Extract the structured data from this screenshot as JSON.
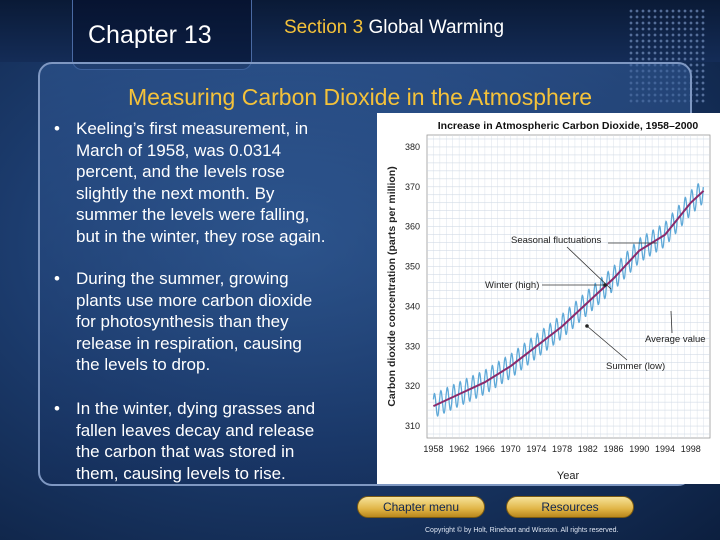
{
  "header": {
    "chapter": "Chapter 13",
    "section_number": "Section 3",
    "section_name": "Global Warming"
  },
  "slide": {
    "title": "Measuring Carbon Dioxide in the Atmosphere",
    "bullets": [
      [
        "Keeling’s first measurement, in",
        "March of 1958, was 0.0314",
        "percent, and the levels rose",
        "slightly the next month. By",
        "summer the levels were falling,",
        "but in the winter, they rose again."
      ],
      [
        "During the summer, growing",
        "plants use more carbon dioxide",
        "for photosynthesis than they",
        "release in respiration, causing",
        "the levels to drop."
      ],
      [
        "In the winter, dying grasses and",
        "fallen leaves decay and release",
        "the carbon that was stored in",
        "them, causing levels to rise."
      ]
    ]
  },
  "nav": {
    "chapter_menu": "Chapter menu",
    "resources": "Resources"
  },
  "footer": {
    "copyright": "Copyright © by Holt, Rinehart and Winston. All rights reserved."
  },
  "chart_data": {
    "type": "line",
    "title": "Increase in Atmospheric Carbon Dioxide, 1958–2000",
    "xlabel": "Year",
    "ylabel": "Carbon dioxide concentration (parts per million)",
    "xlim": [
      1957,
      2001
    ],
    "ylim": [
      307,
      383
    ],
    "x_ticks": [
      1958,
      1962,
      1966,
      1970,
      1974,
      1978,
      1982,
      1986,
      1990,
      1994,
      1998
    ],
    "y_ticks": [
      310,
      320,
      330,
      340,
      350,
      360,
      370,
      380
    ],
    "grid": true,
    "annotations": [
      "Seasonal fluctuations",
      "Winter (high)",
      "Average value",
      "Summer (low)"
    ],
    "series": [
      {
        "style": "seasonal",
        "color": "#5fa9d8",
        "seasonal_amplitude_ppm": 3,
        "x": [
          1958,
          1962,
          1966,
          1970,
          1974,
          1978,
          1982,
          1986,
          1990,
          1994,
          1998,
          2000
        ],
        "y": [
          315,
          318,
          321,
          325,
          330,
          335,
          341,
          347,
          354,
          358,
          366,
          369
        ]
      },
      {
        "style": "average",
        "color": "#8b2a6b",
        "x": [
          1958,
          1962,
          1966,
          1970,
          1974,
          1978,
          1982,
          1986,
          1990,
          1994,
          1998,
          2000
        ],
        "y": [
          315,
          318,
          321,
          325,
          330,
          335,
          341,
          347,
          354,
          358,
          366,
          369
        ]
      }
    ]
  }
}
